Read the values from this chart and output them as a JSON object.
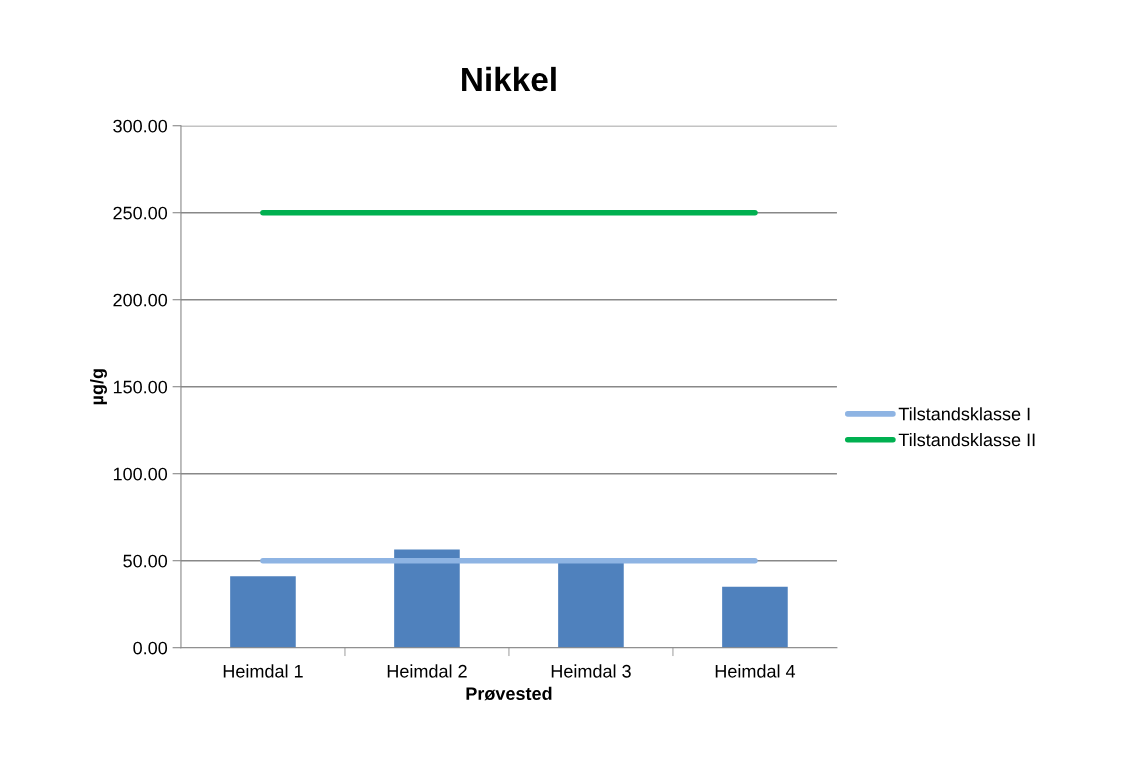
{
  "chart_data": {
    "type": "bar",
    "title": "Nikkel",
    "xlabel": "Prøvested",
    "ylabel": "µg/g",
    "categories": [
      "Heimdal 1",
      "Heimdal 2",
      "Heimdal 3",
      "Heimdal 4"
    ],
    "series": [
      {
        "color": "#4f81bd",
        "values": [
          41,
          56.5,
          49,
          35
        ]
      },
      {
        "type": "line",
        "name": "Tilstandsklasse I",
        "color": "#8eb4e3",
        "values": [
          50,
          50,
          50,
          50
        ]
      },
      {
        "type": "line",
        "name": "Tilstandsklasse II",
        "color": "#00b050",
        "values": [
          250,
          250,
          250,
          250
        ]
      }
    ],
    "ylim": [
      0,
      300
    ],
    "yticks": [
      {
        "value": 0,
        "label": "0.00"
      },
      {
        "value": 50,
        "label": "50.00"
      },
      {
        "value": 100,
        "label": "100.00"
      },
      {
        "value": 150,
        "label": "150.00"
      },
      {
        "value": 200,
        "label": "200.00"
      },
      {
        "value": 250,
        "label": "250.00"
      },
      {
        "value": 300,
        "label": "300.00"
      }
    ],
    "grid": "y",
    "legend": "right",
    "marker": "none",
    "line_style": "solid"
  }
}
